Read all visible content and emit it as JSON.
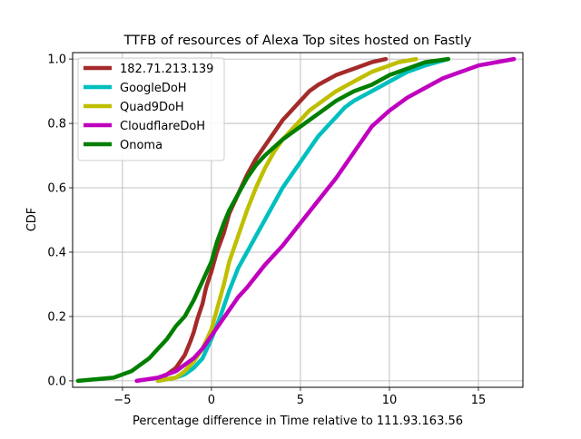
{
  "chart_data": {
    "type": "line",
    "title": "TTFB of resources of Alexa Top sites hosted on Fastly",
    "xlabel": "Percentage difference in Time relative to 111.93.163.56",
    "ylabel": "CDF",
    "xlim": [
      -7.8,
      17.5
    ],
    "ylim": [
      -0.02,
      1.02
    ],
    "x_ticks": [
      -5,
      0,
      5,
      10,
      15
    ],
    "x_tick_labels": [
      "−5",
      "0",
      "5",
      "10",
      "15"
    ],
    "y_ticks": [
      0.0,
      0.2,
      0.4,
      0.6,
      0.8,
      1.0
    ],
    "y_tick_labels": [
      "0.0",
      "0.2",
      "0.4",
      "0.6",
      "0.8",
      "1.0"
    ],
    "grid": true,
    "legend_position": "upper-left",
    "series": [
      {
        "name": "182.71.213.139",
        "color": "#a52a2a",
        "x": [
          -3.0,
          -2.5,
          -2.0,
          -1.5,
          -1.2,
          -1.0,
          -0.8,
          -0.5,
          -0.3,
          0.0,
          0.3,
          0.7,
          1.0,
          1.5,
          2.0,
          2.5,
          3.0,
          3.5,
          4.0,
          4.5,
          5.0,
          5.5,
          6.0,
          7.0,
          8.0,
          9.0,
          9.8
        ],
        "y": [
          0.0,
          0.02,
          0.04,
          0.08,
          0.12,
          0.15,
          0.19,
          0.24,
          0.29,
          0.34,
          0.4,
          0.46,
          0.52,
          0.58,
          0.64,
          0.69,
          0.73,
          0.77,
          0.81,
          0.84,
          0.87,
          0.9,
          0.92,
          0.95,
          0.97,
          0.99,
          1.0
        ]
      },
      {
        "name": "GoogleDoH",
        "color": "#00bfbf",
        "x": [
          -3.0,
          -2.0,
          -1.5,
          -1.0,
          -0.5,
          0.0,
          0.5,
          1.0,
          1.5,
          2.0,
          2.5,
          3.0,
          3.5,
          4.0,
          4.5,
          5.0,
          5.5,
          6.0,
          6.5,
          7.0,
          7.5,
          8.0,
          9.0,
          10.0,
          11.0,
          12.0,
          13.3
        ],
        "y": [
          0.0,
          0.01,
          0.02,
          0.04,
          0.07,
          0.13,
          0.2,
          0.28,
          0.35,
          0.4,
          0.45,
          0.5,
          0.55,
          0.6,
          0.64,
          0.68,
          0.72,
          0.76,
          0.79,
          0.82,
          0.85,
          0.87,
          0.9,
          0.93,
          0.96,
          0.98,
          1.0
        ]
      },
      {
        "name": "Quad9DoH",
        "color": "#bfbf00",
        "x": [
          -3.0,
          -2.0,
          -1.5,
          -1.0,
          -0.5,
          0.0,
          0.3,
          0.7,
          1.0,
          1.5,
          2.0,
          2.5,
          3.0,
          3.5,
          4.0,
          4.5,
          5.0,
          5.5,
          6.0,
          6.5,
          7.0,
          8.0,
          9.0,
          10.0,
          10.5,
          11.5
        ],
        "y": [
          0.0,
          0.01,
          0.03,
          0.06,
          0.1,
          0.16,
          0.22,
          0.3,
          0.37,
          0.45,
          0.53,
          0.6,
          0.66,
          0.71,
          0.75,
          0.78,
          0.81,
          0.84,
          0.86,
          0.88,
          0.9,
          0.93,
          0.96,
          0.98,
          0.99,
          1.0
        ]
      },
      {
        "name": "CloudflareDoH",
        "color": "#bf00bf",
        "x": [
          -4.2,
          -3.0,
          -2.0,
          -1.0,
          -0.5,
          0.0,
          0.5,
          1.0,
          1.5,
          2.0,
          3.0,
          4.0,
          5.0,
          6.0,
          7.0,
          8.0,
          9.0,
          10.0,
          11.0,
          12.0,
          13.0,
          14.0,
          15.0,
          16.0,
          17.0
        ],
        "y": [
          0.0,
          0.01,
          0.03,
          0.07,
          0.1,
          0.14,
          0.18,
          0.22,
          0.26,
          0.29,
          0.36,
          0.42,
          0.49,
          0.56,
          0.63,
          0.71,
          0.79,
          0.84,
          0.88,
          0.91,
          0.94,
          0.96,
          0.98,
          0.99,
          1.0
        ]
      },
      {
        "name": "Onoma",
        "color": "#007f00",
        "x": [
          -7.5,
          -5.5,
          -5.0,
          -4.5,
          -4.0,
          -3.5,
          -3.0,
          -2.5,
          -2.0,
          -1.5,
          -1.0,
          -0.5,
          0.0,
          0.3,
          0.7,
          1.0,
          1.5,
          2.0,
          2.5,
          3.0,
          4.0,
          5.0,
          6.0,
          7.0,
          8.0,
          9.0,
          10.0,
          11.0,
          12.0,
          13.3
        ],
        "y": [
          0.0,
          0.01,
          0.02,
          0.03,
          0.05,
          0.07,
          0.1,
          0.13,
          0.17,
          0.2,
          0.25,
          0.31,
          0.37,
          0.43,
          0.49,
          0.53,
          0.58,
          0.63,
          0.67,
          0.7,
          0.75,
          0.79,
          0.83,
          0.87,
          0.9,
          0.92,
          0.95,
          0.97,
          0.99,
          1.0
        ]
      }
    ]
  }
}
